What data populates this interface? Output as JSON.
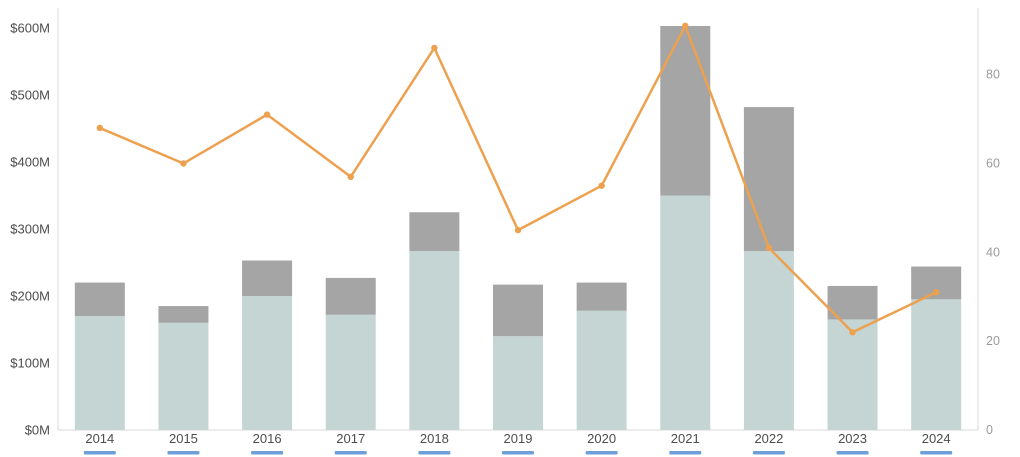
{
  "page": {
    "background": "#ffffff"
  },
  "chart_data": {
    "type": "bar",
    "subtype": "stacked-bar-with-line-overlay",
    "title": "",
    "xlabel": "",
    "ylabel": "",
    "grid": false,
    "legend": "none",
    "categories": [
      "2014",
      "2015",
      "2016",
      "2017",
      "2018",
      "2019",
      "2020",
      "2021",
      "2022",
      "2023",
      "2024"
    ],
    "series": [
      {
        "name": "bar-segment-bottom",
        "kind": "bar",
        "stack": "total",
        "axis": "left",
        "color": "#c5d5d3",
        "values": [
          170,
          160,
          200,
          172,
          267,
          140,
          178,
          350,
          267,
          165,
          195
        ]
      },
      {
        "name": "bar-segment-top",
        "kind": "bar",
        "stack": "total",
        "axis": "left",
        "color": "#a5a5a5",
        "values": [
          50,
          25,
          53,
          55,
          58,
          77,
          42,
          253,
          215,
          50,
          49
        ]
      },
      {
        "name": "line-series",
        "kind": "line",
        "axis": "right",
        "color": "#eda14f",
        "values": [
          68,
          60,
          71,
          57,
          86,
          45,
          55,
          91,
          41,
          22,
          31
        ]
      }
    ],
    "bar_totals": [
      220,
      185,
      253,
      227,
      325,
      217,
      220,
      603,
      482,
      215,
      244
    ],
    "left_axis": {
      "tick_labels": [
        "$0M",
        "$100M",
        "$200M",
        "$300M",
        "$400M",
        "$500M",
        "$600M"
      ],
      "tick_values": [
        0,
        100,
        200,
        300,
        400,
        500,
        600
      ],
      "min": 0,
      "max": 600,
      "unit": "$M",
      "label_color": "#4d4d4d"
    },
    "right_axis": {
      "tick_labels": [
        "0",
        "20",
        "40",
        "60",
        "80"
      ],
      "tick_values": [
        0,
        20,
        40,
        60,
        80
      ],
      "min": 0,
      "max": 95,
      "label_color": "#9b9b9b"
    },
    "x_axis": {
      "label_color": "#4d4d4d"
    },
    "axis_line_color": "#d8d8d8",
    "category_marker_color": "#6f9fd8"
  }
}
